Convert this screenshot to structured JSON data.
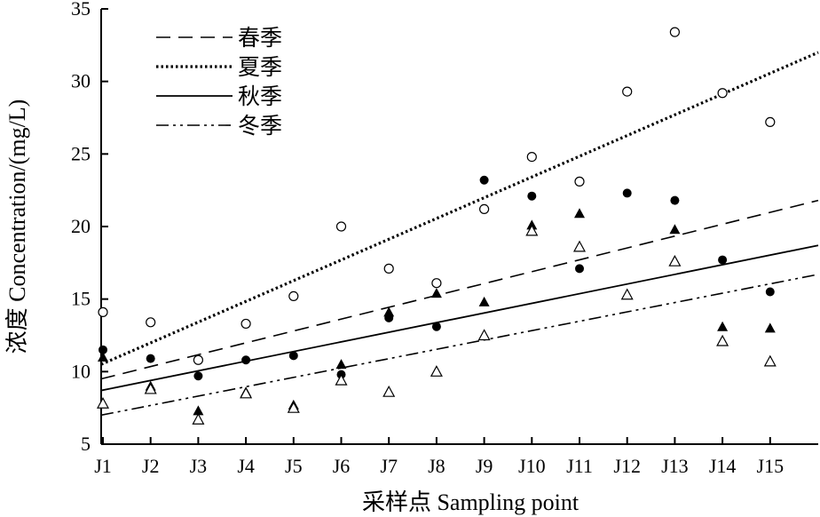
{
  "chart_data": {
    "type": "scatter",
    "xlabel": "采样点 Sampling point",
    "ylabel": "浓度 Concentration/(mg/L)",
    "categories": [
      "J1",
      "J2",
      "J3",
      "J4",
      "J5",
      "J6",
      "J7",
      "J8",
      "J9",
      "J10",
      "J11",
      "J12",
      "J13",
      "J14",
      "J15"
    ],
    "ylim": [
      5,
      35
    ],
    "yticks": [
      5,
      10,
      15,
      20,
      25,
      30,
      35
    ],
    "grid": false,
    "legend_position": "top-left",
    "series": [
      {
        "name": "春季",
        "marker": "filled-triangle",
        "line_style": "dashed",
        "values": [
          11.0,
          9.0,
          7.3,
          8.6,
          7.7,
          10.5,
          14.1,
          15.4,
          14.8,
          20.1,
          20.9,
          15.3,
          19.8,
          13.1,
          13.0
        ],
        "trend": [
          9.5,
          21.8
        ]
      },
      {
        "name": "夏季",
        "marker": "open-circle",
        "line_style": "dotted",
        "values": [
          14.1,
          13.4,
          10.8,
          13.3,
          15.2,
          20.0,
          17.1,
          16.1,
          21.2,
          24.8,
          23.1,
          29.3,
          33.4,
          29.2,
          27.2
        ],
        "trend": [
          10.5,
          32.0
        ]
      },
      {
        "name": "秋季",
        "marker": "filled-circle",
        "line_style": "solid",
        "values": [
          11.5,
          10.9,
          9.7,
          10.8,
          11.1,
          9.8,
          13.7,
          13.1,
          23.2,
          22.1,
          17.1,
          22.3,
          21.8,
          17.7,
          15.5
        ],
        "trend": [
          8.7,
          18.7
        ]
      },
      {
        "name": "冬季",
        "marker": "open-triangle",
        "line_style": "dash-dot-dot",
        "values": [
          7.8,
          8.8,
          6.7,
          8.5,
          7.5,
          9.4,
          8.6,
          10.0,
          12.5,
          19.7,
          18.6,
          15.3,
          17.6,
          12.1,
          10.7
        ],
        "trend": [
          7.0,
          16.7
        ]
      }
    ]
  }
}
